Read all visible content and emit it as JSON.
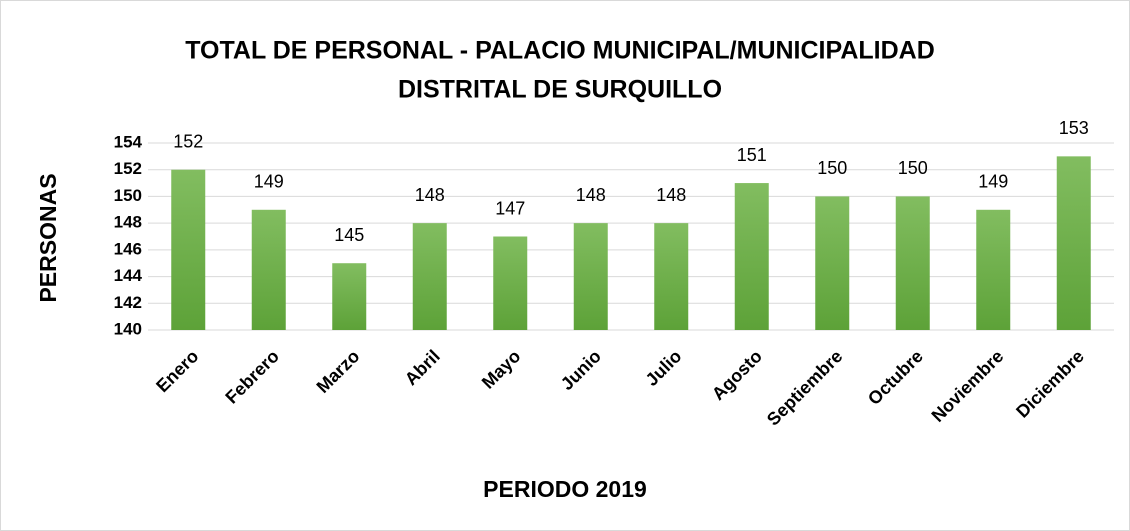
{
  "chart_data": {
    "type": "bar",
    "title": "TOTAL DE PERSONAL - PALACIO MUNICIPAL/MUNICIPALIDAD",
    "subtitle": "DISTRITAL DE SURQUILLO",
    "y_label": "PERSONAS",
    "x_label": "PERIODO 2019",
    "categories": [
      "Enero",
      "Febrero",
      "Marzo",
      "Abril",
      "Mayo",
      "Junio",
      "Julio",
      "Agosto",
      "Septiembre",
      "Octubre",
      "Noviembre",
      "Diciembre"
    ],
    "values": [
      152,
      149,
      145,
      148,
      147,
      148,
      148,
      151,
      150,
      150,
      149,
      153
    ],
    "color": "#6aaf44",
    "ylim": [
      140,
      154
    ],
    "yticks": [
      140,
      142,
      144,
      146,
      148,
      150,
      152,
      154
    ],
    "grid": true
  }
}
